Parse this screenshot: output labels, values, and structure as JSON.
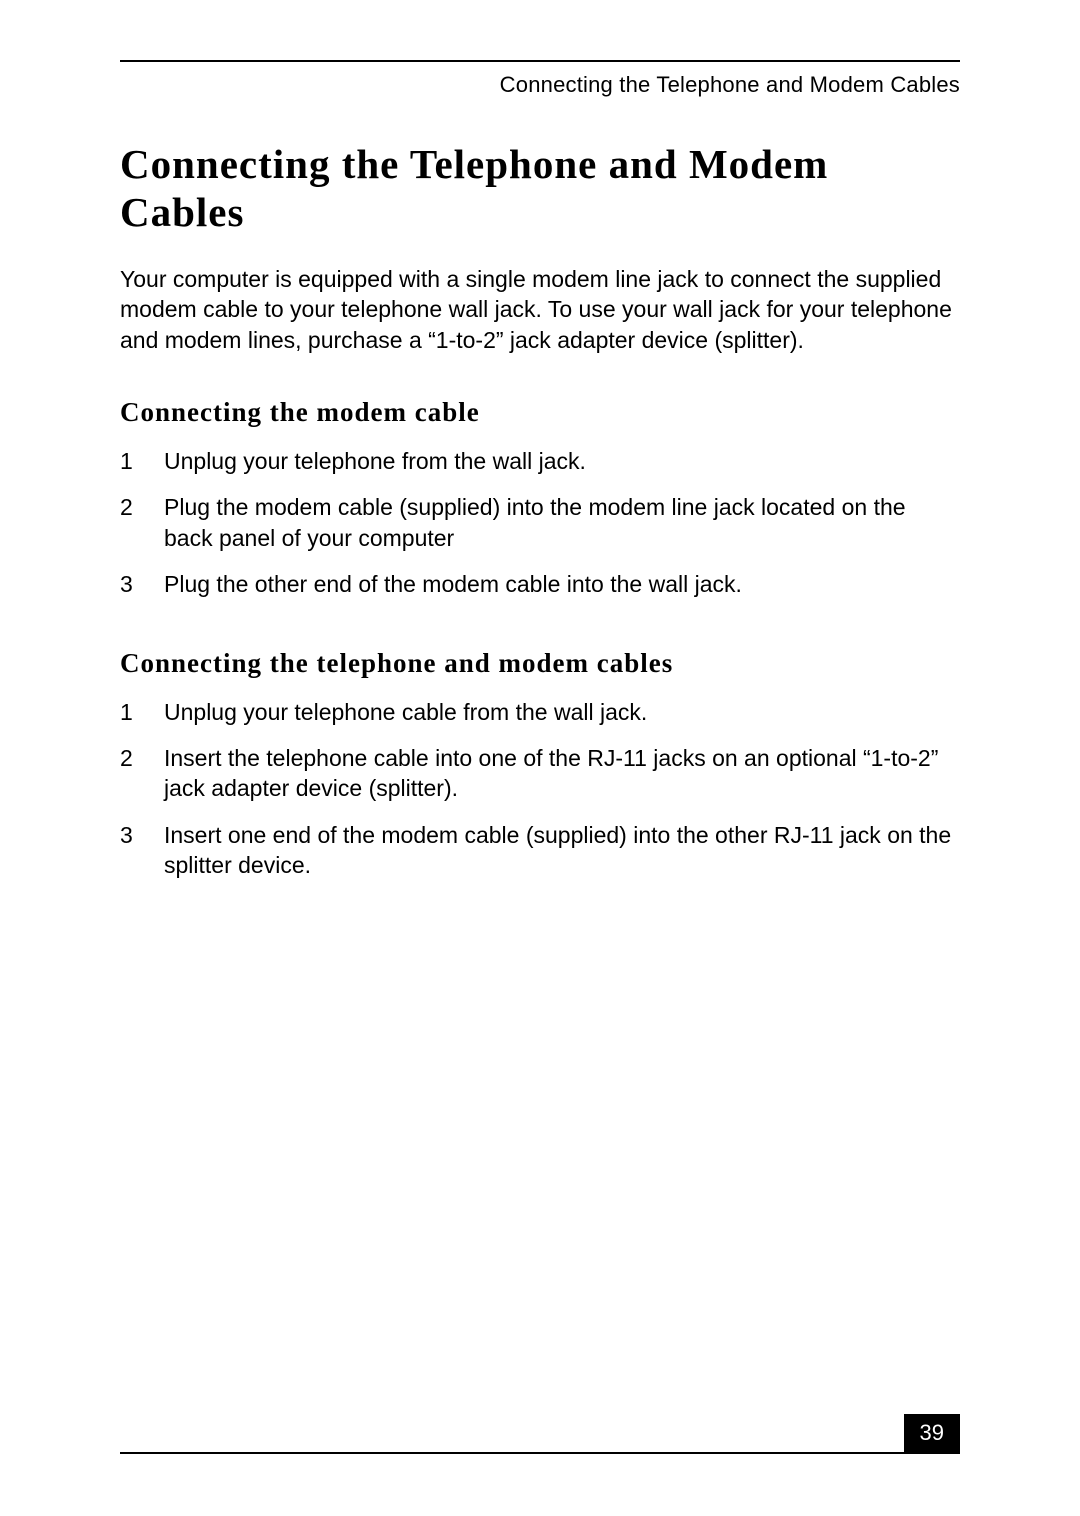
{
  "runningHead": "Connecting the Telephone and Modem Cables",
  "title": "Connecting the Telephone and Modem Cables",
  "intro": "Your computer is equipped with a single modem line jack to connect the supplied modem cable to your telephone wall jack. To use your wall jack for your telephone and modem lines, purchase a “1-to-2” jack adapter device (splitter).",
  "sections": [
    {
      "heading": "Connecting the modem cable",
      "items": [
        {
          "num": "1",
          "text": "Unplug your telephone from the wall jack."
        },
        {
          "num": "2",
          "text": "Plug the modem cable (supplied) into the modem line jack located on the back panel of your computer"
        },
        {
          "num": "3",
          "text": "Plug the other end of the modem cable into the wall jack."
        }
      ]
    },
    {
      "heading": "Connecting the telephone and modem cables",
      "items": [
        {
          "num": "1",
          "text": "Unplug your telephone cable from the wall jack."
        },
        {
          "num": "2",
          "text": "Insert the telephone cable into one of the RJ-11 jacks on an optional “1-to-2” jack adapter device (splitter)."
        },
        {
          "num": "3",
          "text": "Insert one end of the modem cable (supplied) into the other RJ-11 jack on the splitter device."
        }
      ]
    }
  ],
  "pageNumber": "39",
  "colors": {
    "text": "#000000",
    "background": "#ffffff",
    "pageNumBg": "#000000",
    "pageNumFg": "#ffffff"
  },
  "typography": {
    "titleFontPt": 41,
    "subheadFontPt": 27,
    "bodyFontPt": 23,
    "runningHeadFontPt": 22
  }
}
